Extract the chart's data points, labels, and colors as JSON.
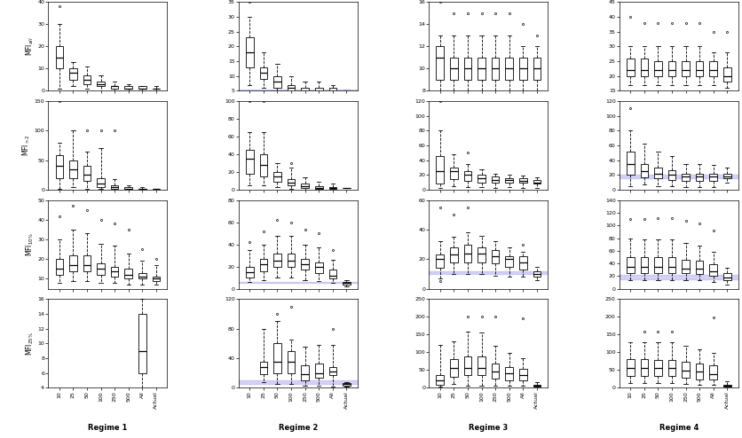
{
  "regimes": [
    "Regime 1",
    "Regime 2",
    "Regime 3",
    "Regime 4"
  ],
  "row_labels": [
    "MFI$_{all}$",
    "MFI$_{>2}$",
    "MFI$_{10\\%}$",
    "MFI$_{25\\%}$"
  ],
  "categories": [
    "10",
    "25",
    "50",
    "100",
    "250",
    "500",
    "All",
    "Actual"
  ],
  "shade_color": "#aaaaee",
  "shade_alpha": 0.5,
  "ylims": [
    [
      [
        0,
        40
      ],
      [
        5,
        35
      ],
      [
        8,
        16
      ],
      [
        15,
        45
      ]
    ],
    [
      [
        0,
        150
      ],
      [
        0,
        100
      ],
      [
        0,
        120
      ],
      [
        0,
        120
      ]
    ],
    [
      [
        5,
        50
      ],
      [
        0,
        80
      ],
      [
        0,
        60
      ],
      [
        0,
        140
      ]
    ],
    [
      [
        4,
        16
      ],
      [
        0,
        120
      ],
      [
        0,
        250
      ],
      [
        0,
        250
      ]
    ]
  ],
  "yticks": [
    [
      [
        0,
        10,
        20,
        30,
        40
      ],
      [
        5,
        10,
        15,
        20,
        25,
        30,
        35
      ],
      [
        8,
        10,
        12,
        14,
        16
      ],
      [
        15,
        20,
        25,
        30,
        35,
        40,
        45
      ]
    ],
    [
      [
        0,
        50,
        100,
        150
      ],
      [
        0,
        20,
        40,
        60,
        80,
        100
      ],
      [
        0,
        20,
        40,
        60,
        80,
        100,
        120
      ],
      [
        0,
        20,
        40,
        60,
        80,
        100,
        120
      ]
    ],
    [
      [
        10,
        20,
        30,
        40,
        50
      ],
      [
        0,
        20,
        40,
        60,
        80
      ],
      [
        0,
        20,
        40,
        60
      ],
      [
        0,
        20,
        40,
        60,
        80,
        100,
        120,
        140
      ]
    ],
    [
      [
        4,
        6,
        8,
        10,
        12,
        14,
        16
      ],
      [
        0,
        40,
        80,
        120
      ],
      [
        0,
        50,
        100,
        150,
        200,
        250
      ],
      [
        0,
        50,
        100,
        150,
        200,
        250
      ]
    ]
  ],
  "shade_bands": [
    [
      null,
      [
        5,
        5.5
      ],
      null,
      null
    ],
    [
      null,
      null,
      null,
      [
        15,
        20
      ]
    ],
    [
      null,
      [
        5,
        6
      ],
      [
        10,
        12
      ],
      [
        15,
        22
      ]
    ],
    [
      null,
      [
        5,
        10
      ],
      null,
      null
    ]
  ],
  "box_data": {
    "row0_col0": {
      "medians": [
        15,
        8,
        5,
        3,
        2,
        1,
        1,
        1
      ],
      "q1": [
        10,
        5,
        3,
        2,
        1,
        1,
        1,
        1
      ],
      "q3": [
        20,
        10,
        7,
        4,
        2,
        2,
        2,
        1
      ],
      "whislo": [
        1,
        2,
        1,
        0,
        0,
        0,
        0,
        0
      ],
      "whishi": [
        30,
        13,
        11,
        7,
        4,
        3,
        2,
        2
      ],
      "fliers_high": [
        38,
        null,
        null,
        null,
        null,
        null,
        null,
        null
      ],
      "fliers_low": [
        null,
        null,
        null,
        null,
        null,
        null,
        null,
        null
      ]
    },
    "row0_col1": {
      "medians": [
        18,
        11,
        8,
        6,
        5,
        5,
        5,
        5
      ],
      "q1": [
        13,
        9,
        6,
        5,
        4,
        4,
        4,
        5
      ],
      "q3": [
        23,
        13,
        10,
        7,
        6,
        6,
        6,
        5
      ],
      "whislo": [
        7,
        6,
        4,
        3,
        2,
        3,
        3,
        5
      ],
      "whishi": [
        30,
        18,
        14,
        10,
        8,
        8,
        7,
        5
      ],
      "fliers_high": [
        35,
        null,
        null,
        null,
        null,
        null,
        null,
        null
      ],
      "fliers_low": [
        null,
        null,
        null,
        null,
        null,
        null,
        null,
        null
      ]
    },
    "row0_col2": {
      "medians": [
        11,
        10,
        10,
        10,
        10,
        10,
        10,
        10
      ],
      "q1": [
        9,
        9,
        9,
        9,
        9,
        9,
        9,
        9
      ],
      "q3": [
        12,
        11,
        11,
        11,
        11,
        11,
        11,
        11
      ],
      "whislo": [
        8,
        8,
        8,
        8,
        8,
        8,
        8,
        8
      ],
      "whishi": [
        13,
        13,
        13,
        13,
        13,
        13,
        12,
        12
      ],
      "fliers_high": [
        16,
        15,
        15,
        15,
        15,
        15,
        14,
        13
      ],
      "fliers_low": [
        null,
        null,
        null,
        null,
        null,
        null,
        null,
        null
      ]
    },
    "row0_col3": {
      "medians": [
        22,
        22,
        22,
        22,
        22,
        22,
        22,
        20
      ],
      "q1": [
        20,
        20,
        20,
        20,
        20,
        20,
        20,
        18
      ],
      "q3": [
        26,
        26,
        25,
        25,
        25,
        25,
        25,
        23
      ],
      "whislo": [
        17,
        17,
        17,
        17,
        17,
        17,
        17,
        16
      ],
      "whishi": [
        30,
        30,
        30,
        30,
        30,
        30,
        28,
        28
      ],
      "fliers_high": [
        40,
        38,
        38,
        38,
        38,
        38,
        35,
        35
      ],
      "fliers_low": [
        null,
        null,
        null,
        null,
        null,
        null,
        null,
        null
      ]
    },
    "row1_col0": {
      "medians": [
        40,
        35,
        25,
        10,
        4,
        2,
        1,
        1
      ],
      "q1": [
        20,
        20,
        15,
        5,
        2,
        1,
        0,
        1
      ],
      "q3": [
        58,
        50,
        40,
        20,
        8,
        4,
        2,
        1
      ],
      "whislo": [
        1,
        5,
        2,
        1,
        0,
        0,
        0,
        0
      ],
      "whishi": [
        80,
        100,
        65,
        70,
        18,
        8,
        4,
        2
      ],
      "fliers_high": [
        150,
        null,
        100,
        100,
        100,
        null,
        null,
        null
      ],
      "fliers_low": [
        null,
        null,
        null,
        null,
        null,
        null,
        null,
        null
      ]
    },
    "row1_col1": {
      "medians": [
        35,
        28,
        15,
        8,
        4,
        2,
        2,
        2
      ],
      "q1": [
        18,
        15,
        9,
        5,
        2,
        1,
        1,
        2
      ],
      "q3": [
        45,
        40,
        20,
        12,
        7,
        4,
        3,
        2
      ],
      "whislo": [
        5,
        5,
        3,
        1,
        0,
        0,
        0,
        2
      ],
      "whishi": [
        65,
        65,
        30,
        25,
        14,
        9,
        7,
        2
      ],
      "fliers_high": [
        100,
        100,
        null,
        30,
        null,
        null,
        null,
        null
      ],
      "fliers_low": [
        null,
        null,
        null,
        null,
        null,
        null,
        null,
        null
      ]
    },
    "row1_col2": {
      "medians": [
        25,
        25,
        20,
        15,
        13,
        13,
        12,
        10
      ],
      "q1": [
        8,
        14,
        12,
        10,
        10,
        9,
        9,
        8
      ],
      "q3": [
        45,
        30,
        25,
        20,
        18,
        16,
        15,
        13
      ],
      "whislo": [
        2,
        5,
        4,
        3,
        2,
        3,
        2,
        2
      ],
      "whishi": [
        80,
        48,
        35,
        28,
        22,
        20,
        19,
        17
      ],
      "fliers_high": [
        120,
        null,
        50,
        null,
        null,
        null,
        null,
        null
      ],
      "fliers_low": [
        null,
        null,
        null,
        null,
        null,
        null,
        null,
        null
      ]
    },
    "row1_col3": {
      "medians": [
        35,
        25,
        22,
        20,
        18,
        18,
        18,
        18
      ],
      "q1": [
        20,
        17,
        15,
        13,
        12,
        12,
        12,
        15
      ],
      "q3": [
        52,
        35,
        30,
        26,
        22,
        22,
        22,
        22
      ],
      "whislo": [
        5,
        7,
        5,
        5,
        3,
        3,
        3,
        10
      ],
      "whishi": [
        80,
        62,
        52,
        45,
        35,
        35,
        33,
        30
      ],
      "fliers_high": [
        110,
        null,
        null,
        null,
        null,
        null,
        null,
        null
      ],
      "fliers_low": [
        null,
        null,
        null,
        null,
        null,
        null,
        null,
        null
      ]
    },
    "row2_col0": {
      "medians": [
        15,
        17,
        17,
        15,
        14,
        12,
        11,
        10
      ],
      "q1": [
        12,
        14,
        14,
        12,
        11,
        10,
        10,
        9
      ],
      "q3": [
        20,
        22,
        22,
        18,
        16,
        15,
        13,
        11
      ],
      "whislo": [
        8,
        9,
        9,
        8,
        8,
        7,
        7,
        7
      ],
      "whishi": [
        30,
        35,
        33,
        28,
        27,
        23,
        19,
        17
      ],
      "fliers_high": [
        42,
        47,
        45,
        40,
        38,
        35,
        25,
        20
      ],
      "fliers_low": [
        null,
        null,
        null,
        null,
        null,
        null,
        null,
        null
      ]
    },
    "row2_col1": {
      "medians": [
        15,
        22,
        25,
        25,
        22,
        20,
        12,
        5
      ],
      "q1": [
        10,
        16,
        20,
        20,
        17,
        14,
        9,
        4
      ],
      "q3": [
        20,
        27,
        32,
        32,
        27,
        24,
        17,
        6
      ],
      "whislo": [
        6,
        8,
        10,
        10,
        8,
        7,
        5,
        2
      ],
      "whishi": [
        35,
        40,
        48,
        48,
        40,
        37,
        26,
        8
      ],
      "fliers_high": [
        42,
        52,
        62,
        60,
        53,
        50,
        35,
        null
      ],
      "fliers_low": [
        null,
        null,
        null,
        null,
        null,
        null,
        null,
        null
      ]
    },
    "row2_col2": {
      "medians": [
        20,
        23,
        24,
        24,
        22,
        20,
        18,
        10
      ],
      "q1": [
        14,
        18,
        18,
        18,
        17,
        15,
        13,
        8
      ],
      "q3": [
        23,
        28,
        30,
        28,
        26,
        22,
        22,
        12
      ],
      "whislo": [
        7,
        10,
        10,
        10,
        9,
        8,
        8,
        6
      ],
      "whishi": [
        32,
        35,
        38,
        36,
        32,
        28,
        25,
        15
      ],
      "fliers_high": [
        55,
        50,
        55,
        null,
        null,
        null,
        30,
        null
      ],
      "fliers_low": [
        5,
        null,
        null,
        null,
        null,
        null,
        null,
        null
      ]
    },
    "row2_col3": {
      "medians": [
        35,
        35,
        35,
        35,
        32,
        32,
        28,
        18
      ],
      "q1": [
        25,
        25,
        25,
        25,
        24,
        23,
        20,
        14
      ],
      "q3": [
        50,
        50,
        50,
        50,
        46,
        44,
        38,
        24
      ],
      "whislo": [
        14,
        14,
        14,
        14,
        13,
        13,
        10,
        7
      ],
      "whishi": [
        80,
        78,
        78,
        78,
        72,
        68,
        58,
        33
      ],
      "fliers_high": [
        110,
        110,
        112,
        112,
        108,
        103,
        92,
        null
      ],
      "fliers_low": [
        null,
        null,
        null,
        null,
        null,
        null,
        null,
        null
      ]
    },
    "row3_col0": {
      "medians": [
        null,
        null,
        null,
        null,
        null,
        null,
        9,
        null
      ],
      "q1": [
        null,
        null,
        null,
        null,
        null,
        null,
        6,
        null
      ],
      "q3": [
        null,
        null,
        null,
        null,
        null,
        null,
        14,
        null
      ],
      "whislo": [
        null,
        null,
        null,
        null,
        null,
        null,
        4,
        null
      ],
      "whishi": [
        null,
        null,
        null,
        null,
        null,
        null,
        16,
        null
      ],
      "fliers_high": [
        null,
        null,
        null,
        null,
        null,
        null,
        null,
        null
      ],
      "fliers_low": [
        null,
        null,
        null,
        null,
        null,
        null,
        null,
        null
      ]
    },
    "row3_col1": {
      "medians": [
        null,
        28,
        35,
        35,
        18,
        20,
        22,
        5
      ],
      "q1": [
        null,
        18,
        20,
        20,
        10,
        14,
        17,
        3
      ],
      "q3": [
        null,
        35,
        60,
        50,
        30,
        33,
        28,
        6
      ],
      "whislo": [
        null,
        7,
        5,
        5,
        3,
        3,
        2,
        2
      ],
      "whishi": [
        null,
        80,
        90,
        65,
        55,
        58,
        58,
        8
      ],
      "fliers_high": [
        null,
        null,
        100,
        110,
        null,
        null,
        80,
        null
      ],
      "fliers_low": [
        null,
        null,
        null,
        null,
        null,
        null,
        null,
        null
      ]
    },
    "row3_col2": {
      "medians": [
        20,
        55,
        55,
        55,
        45,
        40,
        35,
        5
      ],
      "q1": [
        8,
        30,
        35,
        35,
        25,
        20,
        20,
        3
      ],
      "q3": [
        35,
        80,
        88,
        88,
        68,
        58,
        52,
        8
      ],
      "whislo": [
        2,
        10,
        5,
        5,
        5,
        5,
        5,
        1
      ],
      "whishi": [
        120,
        130,
        158,
        155,
        118,
        98,
        82,
        15
      ],
      "fliers_high": [
        null,
        null,
        200,
        200,
        200,
        null,
        195,
        null
      ],
      "fliers_low": [
        null,
        null,
        null,
        null,
        null,
        null,
        null,
        null
      ]
    },
    "row3_col3": {
      "medians": [
        55,
        55,
        55,
        55,
        48,
        45,
        38,
        5
      ],
      "q1": [
        32,
        32,
        32,
        32,
        28,
        24,
        22,
        3
      ],
      "q3": [
        80,
        80,
        78,
        78,
        72,
        68,
        62,
        8
      ],
      "whislo": [
        14,
        14,
        14,
        14,
        10,
        9,
        9,
        1
      ],
      "whishi": [
        128,
        128,
        128,
        128,
        118,
        108,
        98,
        18
      ],
      "fliers_high": [
        null,
        158,
        158,
        158,
        null,
        null,
        198,
        null
      ],
      "fliers_low": [
        null,
        null,
        null,
        null,
        null,
        null,
        null,
        null
      ]
    }
  }
}
